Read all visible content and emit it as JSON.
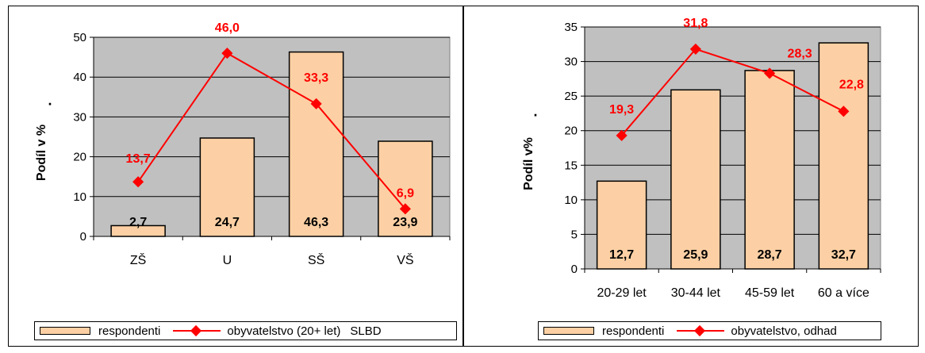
{
  "chart_data": [
    {
      "type": "bar",
      "categories": [
        "ZŠ",
        "U",
        "SŠ",
        "VŠ"
      ],
      "series": [
        {
          "name": "respondenti",
          "type": "bar",
          "color": "#fcd0a4",
          "values": [
            2.7,
            24.7,
            46.3,
            23.9
          ],
          "labels": [
            "2,7",
            "24,7",
            "46,3",
            "23,9"
          ]
        },
        {
          "name": "obyvatelstvo (20+ let)",
          "type": "line",
          "color": "#ff0000",
          "values": [
            13.7,
            46.0,
            33.3,
            6.9
          ],
          "labels": [
            "13,7",
            "46,0",
            "33,3",
            "6,9"
          ]
        }
      ],
      "ylabel": "Podíl v %",
      "ylabel_mark": ".",
      "ylim": [
        0,
        50
      ],
      "yticks": [
        "0",
        "10",
        "20",
        "30",
        "40",
        "50"
      ],
      "plot_background": "#c0c0c0",
      "grid": true,
      "legend": {
        "position": "bottom",
        "entries": [
          "respondenti",
          "obyvatelstvo (20+ let)"
        ],
        "source": "SLBD"
      }
    },
    {
      "type": "bar",
      "categories": [
        "20-29 let",
        "30-44 let",
        "45-59 let",
        "60 a více"
      ],
      "series": [
        {
          "name": "respondenti",
          "type": "bar",
          "color": "#fcd0a4",
          "values": [
            12.7,
            25.9,
            28.7,
            32.7
          ],
          "labels": [
            "12,7",
            "25,9",
            "28,7",
            "32,7"
          ]
        },
        {
          "name": "obyvatelstvo, odhad",
          "type": "line",
          "color": "#ff0000",
          "values": [
            19.3,
            31.8,
            28.3,
            22.8
          ],
          "labels": [
            "19,3",
            "31,8",
            "28,3",
            "22,8"
          ]
        }
      ],
      "ylabel": "Podíl  v%",
      "ylabel_mark": ".",
      "ylim": [
        0,
        35
      ],
      "yticks": [
        "0",
        "5",
        "10",
        "15",
        "20",
        "25",
        "30",
        "35"
      ],
      "plot_background": "#c0c0c0",
      "grid": true,
      "legend": {
        "position": "bottom",
        "entries": [
          "respondenti",
          "obyvatelstvo, odhad"
        ]
      }
    }
  ]
}
